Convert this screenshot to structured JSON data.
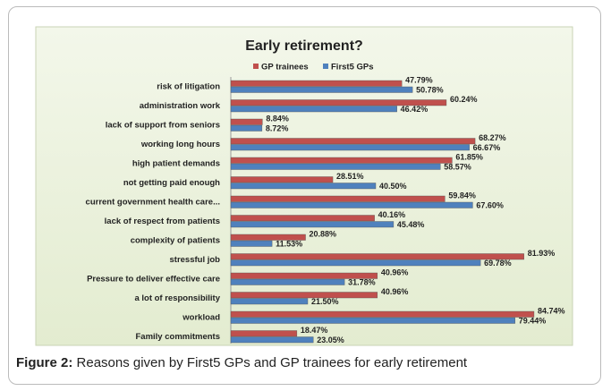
{
  "chart_data": {
    "type": "bar",
    "orientation": "horizontal",
    "title": "Early retirement?",
    "categories": [
      "risk of litigation",
      "administration work",
      "lack of support from seniors",
      "working long hours",
      "high patient demands",
      "not getting paid enough",
      "current government health care...",
      "lack of respect from patients",
      "complexity of patients",
      "stressful job",
      "Pressure to deliver effective care",
      "a lot of responsibility",
      "workload",
      "Family commitments"
    ],
    "series": [
      {
        "name": "GP trainees",
        "color": "#c0504d",
        "values": [
          47.79,
          60.24,
          8.84,
          68.27,
          61.85,
          28.51,
          59.84,
          40.16,
          20.88,
          81.93,
          40.96,
          40.96,
          84.74,
          18.47
        ],
        "value_labels": [
          "47.79%",
          "60.24%",
          "8.84%",
          "68.27%",
          "61.85%",
          "28.51%",
          "59.84%",
          "40.16%",
          "20.88%",
          "81.93%",
          "40.96%",
          "40.96%",
          "84.74%",
          "18.47%"
        ]
      },
      {
        "name": "First5 GPs",
        "color": "#4f81bd",
        "values": [
          50.78,
          46.42,
          8.72,
          66.67,
          58.57,
          40.5,
          67.6,
          45.48,
          11.53,
          69.78,
          31.78,
          21.5,
          79.44,
          23.05
        ],
        "value_labels": [
          "50.78%",
          "46.42%",
          "8.72%",
          "66.67%",
          "58.57%",
          "40.50%",
          "67.60%",
          "45.48%",
          "11.53%",
          "69.78%",
          "31.78%",
          "21.50%",
          "79.44%",
          "23.05%"
        ]
      }
    ],
    "legend": "top"
  },
  "caption": {
    "label": "Figure 2:",
    "text": "Reasons given by First5 GPs and GP trainees for early retirement"
  }
}
